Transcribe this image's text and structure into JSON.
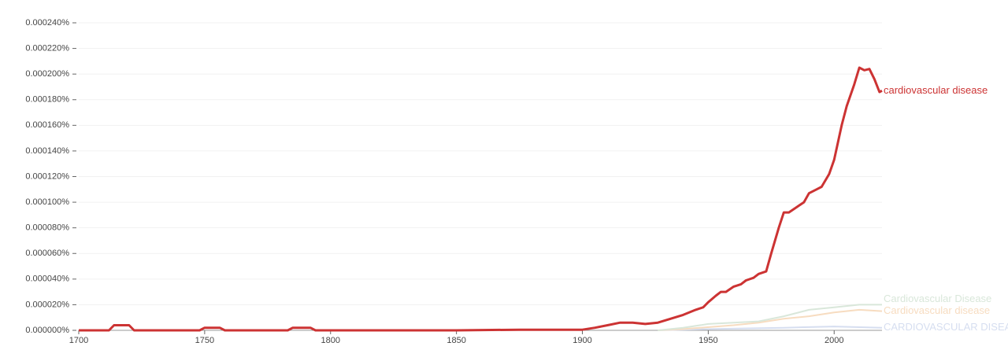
{
  "chart_data": {
    "type": "line",
    "xlim": [
      1700,
      2019
    ],
    "xticks": [
      1700,
      1750,
      1800,
      1850,
      1900,
      1950,
      2000
    ],
    "ylim": [
      0,
      0.00024
    ],
    "yticks": [
      {
        "value": 0,
        "label": "0.000000%"
      },
      {
        "value": 2e-05,
        "label": "0.000020%"
      },
      {
        "value": 4e-05,
        "label": "0.000040%"
      },
      {
        "value": 6e-05,
        "label": "0.000060%"
      },
      {
        "value": 8e-05,
        "label": "0.000080%"
      },
      {
        "value": 0.0001,
        "label": "0.000100%"
      },
      {
        "value": 0.00012,
        "label": "0.000120%"
      },
      {
        "value": 0.00014,
        "label": "0.000140%"
      },
      {
        "value": 0.00016,
        "label": "0.000160%"
      },
      {
        "value": 0.00018,
        "label": "0.000180%"
      },
      {
        "value": 0.0002,
        "label": "0.000200%"
      },
      {
        "value": 0.00022,
        "label": "0.000220%"
      },
      {
        "value": 0.00024,
        "label": "0.000240%"
      }
    ],
    "grid": true,
    "series": [
      {
        "name": "CARDIOVASCULAR DISEASE",
        "color": "#d6def0",
        "x": [
          1930,
          1950,
          1980,
          2000,
          2019
        ],
        "values": [
          0,
          1e-06,
          2e-06,
          3e-06,
          2e-06
        ]
      },
      {
        "name": "Cardiovascular disease",
        "color": "#f7dcc0",
        "x": [
          1930,
          1940,
          1960,
          1970,
          1980,
          1990,
          2000,
          2010,
          2019
        ],
        "values": [
          0,
          1e-06,
          4e-06,
          6e-06,
          9e-06,
          1.1e-05,
          1.4e-05,
          1.6e-05,
          1.5e-05
        ]
      },
      {
        "name": "Cardiovascular Disease",
        "color": "#d9e7da",
        "x": [
          1930,
          1940,
          1950,
          1960,
          1970,
          1980,
          1990,
          2000,
          2010,
          2019
        ],
        "values": [
          0,
          2e-06,
          5e-06,
          6e-06,
          7e-06,
          1.1e-05,
          1.6e-05,
          1.8e-05,
          2e-05,
          2e-05
        ]
      },
      {
        "name": "cardiovascular disease",
        "color": "#cc3333",
        "x": [
          1700,
          1712,
          1714,
          1720,
          1722,
          1748,
          1750,
          1756,
          1758,
          1783,
          1785,
          1792,
          1794,
          1850,
          1875,
          1900,
          1905,
          1910,
          1915,
          1920,
          1925,
          1930,
          1935,
          1940,
          1945,
          1948,
          1950,
          1953,
          1955,
          1957,
          1960,
          1963,
          1965,
          1968,
          1970,
          1973,
          1975,
          1978,
          1980,
          1982,
          1985,
          1988,
          1990,
          1993,
          1995,
          1998,
          2000,
          2003,
          2005,
          2008,
          2010,
          2012,
          2014,
          2016,
          2018,
          2019
        ],
        "values": [
          0,
          0,
          4e-06,
          4e-06,
          0,
          0,
          2e-06,
          2e-06,
          0,
          0,
          2e-06,
          2e-06,
          0,
          0,
          5e-07,
          5e-07,
          2e-06,
          4e-06,
          6e-06,
          6e-06,
          5e-06,
          6e-06,
          9e-06,
          1.2e-05,
          1.6e-05,
          1.8e-05,
          2.2e-05,
          2.7e-05,
          3e-05,
          3e-05,
          3.4e-05,
          3.6e-05,
          3.9e-05,
          4.1e-05,
          4.4e-05,
          4.6e-05,
          6e-05,
          8e-05,
          9.2e-05,
          9.2e-05,
          9.6e-05,
          0.0001,
          0.000107,
          0.00011,
          0.000112,
          0.000122,
          0.000133,
          0.00016,
          0.000175,
          0.000192,
          0.000205,
          0.000203,
          0.000204,
          0.000196,
          0.000186,
          0.000187
        ]
      }
    ]
  }
}
